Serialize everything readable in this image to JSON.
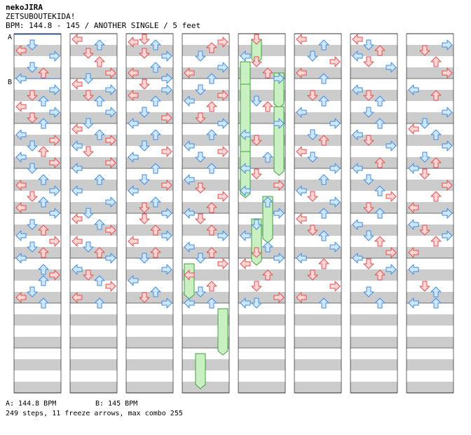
{
  "header": {
    "artist": "nekoJIRA",
    "title": "ZETSUBOUTEKIDA!",
    "info": "BPM: 144.8 - 145 / ANOTHER SINGLE / 5 feet"
  },
  "sections": {
    "a": "A",
    "b": "B"
  },
  "footer": {
    "bpm_a": "A: 144.8 BPM",
    "bpm_b": "B: 145 BPM",
    "stats": "249 steps, 11 freeze arrows, max combo 255"
  },
  "colors": {
    "step_red_fill": "#ffd4d4",
    "step_red_stroke": "#e05050",
    "step_blue_fill": "#cfe6ff",
    "step_blue_stroke": "#3b8fe0",
    "freeze_fill": "#c8f0c0",
    "freeze_stroke": "#40a040",
    "stripe_gray": "#cccccc",
    "section_line": "#3b6fd0"
  },
  "chart_data": {
    "type": "step-chart",
    "columns": 8,
    "measures_per_column": 8,
    "lanes": [
      "left",
      "down",
      "up",
      "right"
    ],
    "notes": [
      [
        [
          1,
          0,
          2
        ],
        [
          0,
          0,
          4
        ],
        [
          3,
          0,
          6
        ],
        [
          1,
          0,
          10
        ],
        [
          2,
          0,
          12
        ],
        [
          0,
          0,
          14
        ],
        [
          3,
          1,
          2
        ],
        [
          1,
          1,
          4
        ],
        [
          2,
          1,
          6
        ],
        [
          0,
          1,
          8
        ],
        [
          3,
          1,
          10
        ],
        [
          1,
          1,
          12
        ],
        [
          2,
          1,
          14
        ],
        [
          0,
          2,
          2
        ],
        [
          3,
          2,
          4
        ],
        [
          1,
          2,
          6
        ],
        [
          2,
          2,
          8
        ],
        [
          0,
          2,
          10
        ],
        [
          3,
          2,
          12
        ],
        [
          1,
          2,
          14
        ],
        [
          2,
          3,
          2
        ],
        [
          0,
          3,
          4
        ],
        [
          3,
          3,
          6
        ],
        [
          1,
          3,
          8
        ],
        [
          2,
          3,
          10
        ],
        [
          0,
          3,
          12
        ],
        [
          3,
          3,
          14
        ],
        [
          1,
          4,
          2
        ],
        [
          2,
          4,
          4
        ],
        [
          0,
          4,
          6
        ],
        [
          3,
          4,
          8
        ],
        [
          1,
          4,
          10
        ],
        [
          2,
          4,
          12
        ],
        [
          0,
          4,
          14
        ],
        [
          2,
          5,
          2
        ],
        [
          3,
          5,
          4
        ],
        [
          2,
          5,
          6
        ],
        [
          1,
          5,
          10
        ],
        [
          0,
          5,
          12
        ],
        [
          2,
          5,
          14
        ]
      ],
      [
        [
          0,
          0,
          0
        ],
        [
          2,
          0,
          2
        ],
        [
          1,
          0,
          5
        ],
        [
          2,
          0,
          8
        ],
        [
          3,
          0,
          12
        ],
        [
          1,
          0,
          14
        ],
        [
          0,
          1,
          0
        ],
        [
          3,
          1,
          2
        ],
        [
          1,
          1,
          4
        ],
        [
          2,
          1,
          6
        ],
        [
          3,
          1,
          10
        ],
        [
          1,
          1,
          14
        ],
        [
          0,
          2,
          0
        ],
        [
          2,
          2,
          2
        ],
        [
          3,
          2,
          4
        ],
        [
          0,
          2,
          6
        ],
        [
          1,
          2,
          8
        ],
        [
          3,
          2,
          12
        ],
        [
          0,
          2,
          14
        ],
        [
          2,
          3,
          2
        ],
        [
          0,
          3,
          6
        ],
        [
          3,
          3,
          10
        ],
        [
          1,
          3,
          14
        ],
        [
          0,
          4,
          0
        ],
        [
          2,
          4,
          2
        ],
        [
          3,
          4,
          4
        ],
        [
          0,
          4,
          8
        ],
        [
          1,
          4,
          10
        ],
        [
          2,
          4,
          12
        ],
        [
          3,
          4,
          14
        ],
        [
          0,
          5,
          2
        ],
        [
          1,
          5,
          4
        ],
        [
          2,
          5,
          6
        ],
        [
          3,
          5,
          8
        ],
        [
          0,
          5,
          12
        ],
        [
          2,
          5,
          14
        ]
      ],
      [
        [
          1,
          0,
          0
        ],
        [
          0,
          0,
          1
        ],
        [
          2,
          0,
          2
        ],
        [
          1,
          0,
          5
        ],
        [
          3,
          0,
          6
        ],
        [
          2,
          0,
          10
        ],
        [
          0,
          0,
          12
        ],
        [
          3,
          0,
          14
        ],
        [
          1,
          1,
          0
        ],
        [
          3,
          1,
          2
        ],
        [
          0,
          1,
          4
        ],
        [
          2,
          1,
          6
        ],
        [
          1,
          1,
          10
        ],
        [
          3,
          1,
          12
        ],
        [
          0,
          1,
          14
        ],
        [
          2,
          2,
          2
        ],
        [
          1,
          2,
          6
        ],
        [
          3,
          2,
          8
        ],
        [
          0,
          2,
          10
        ],
        [
          2,
          2,
          14
        ],
        [
          1,
          3,
          2
        ],
        [
          3,
          3,
          4
        ],
        [
          0,
          3,
          6
        ],
        [
          2,
          3,
          10
        ],
        [
          1,
          3,
          12
        ],
        [
          3,
          3,
          14
        ],
        [
          1,
          4,
          0
        ],
        [
          2,
          4,
          4
        ],
        [
          3,
          4,
          6
        ],
        [
          0,
          4,
          8
        ],
        [
          2,
          4,
          12
        ],
        [
          1,
          4,
          14
        ],
        [
          3,
          5,
          2
        ],
        [
          0,
          5,
          6
        ],
        [
          2,
          5,
          10
        ],
        [
          1,
          5,
          12
        ],
        [
          3,
          5,
          14
        ]
      ],
      [
        [
          3,
          0,
          1
        ],
        [
          2,
          0,
          3
        ],
        [
          1,
          0,
          6
        ],
        [
          3,
          0,
          10
        ],
        [
          0,
          0,
          12
        ],
        [
          2,
          0,
          14
        ],
        [
          1,
          1,
          2
        ],
        [
          3,
          1,
          4
        ],
        [
          0,
          1,
          6
        ],
        [
          2,
          1,
          8
        ],
        [
          1,
          1,
          12
        ],
        [
          3,
          1,
          14
        ],
        [
          2,
          2,
          2
        ],
        [
          0,
          2,
          6
        ],
        [
          3,
          2,
          8
        ],
        [
          1,
          2,
          10
        ],
        [
          2,
          2,
          14
        ],
        [
          0,
          3,
          2
        ],
        [
          1,
          3,
          5
        ],
        [
          3,
          3,
          8
        ],
        [
          2,
          3,
          12
        ],
        [
          0,
          3,
          14
        ],
        [
          1,
          4,
          0
        ],
        [
          2,
          4,
          4
        ],
        [
          3,
          4,
          6
        ],
        [
          0,
          4,
          10
        ],
        [
          2,
          4,
          12
        ],
        [
          1,
          4,
          14
        ],
        [
          3,
          5,
          0
        ],
        [
          0,
          5,
          4
        ],
        [
          2,
          5,
          8
        ],
        [
          1,
          5,
          10
        ],
        [
          0,
          5,
          14
        ],
        [
          2,
          5,
          14
        ]
      ],
      [
        [
          1,
          0,
          0
        ],
        [
          0,
          0,
          6
        ],
        [
          1,
          0,
          8
        ],
        [
          2,
          0,
          12
        ],
        [
          3,
          0,
          14
        ],
        [
          1,
          1,
          6
        ],
        [
          2,
          1,
          8
        ],
        [
          3,
          1,
          14
        ],
        [
          0,
          2,
          2
        ],
        [
          1,
          2,
          4
        ],
        [
          2,
          2,
          10
        ],
        [
          0,
          2,
          14
        ],
        [
          1,
          3,
          0
        ],
        [
          3,
          3,
          4
        ],
        [
          0,
          3,
          6
        ],
        [
          2,
          3,
          10
        ],
        [
          3,
          3,
          14
        ],
        [
          1,
          4,
          2
        ],
        [
          0,
          4,
          6
        ],
        [
          2,
          4,
          10
        ],
        [
          1,
          4,
          12
        ],
        [
          3,
          4,
          14
        ],
        [
          0,
          5,
          0
        ],
        [
          2,
          5,
          4
        ],
        [
          1,
          5,
          8
        ],
        [
          3,
          5,
          12
        ],
        [
          0,
          5,
          14
        ],
        [
          1,
          5,
          14
        ]
      ],
      [
        [
          0,
          0,
          0
        ],
        [
          2,
          0,
          2
        ],
        [
          1,
          0,
          6
        ],
        [
          3,
          0,
          8
        ],
        [
          0,
          0,
          12
        ],
        [
          2,
          0,
          14
        ],
        [
          1,
          1,
          4
        ],
        [
          2,
          1,
          6
        ],
        [
          0,
          1,
          10
        ],
        [
          3,
          1,
          14
        ],
        [
          1,
          2,
          2
        ],
        [
          2,
          2,
          4
        ],
        [
          0,
          2,
          8
        ],
        [
          1,
          2,
          10
        ],
        [
          3,
          2,
          14
        ],
        [
          2,
          3,
          2
        ],
        [
          0,
          3,
          6
        ],
        [
          1,
          3,
          8
        ],
        [
          3,
          3,
          10
        ],
        [
          2,
          3,
          14
        ],
        [
          0,
          4,
          0
        ],
        [
          1,
          4,
          4
        ],
        [
          2,
          4,
          6
        ],
        [
          3,
          4,
          10
        ],
        [
          0,
          4,
          14
        ],
        [
          2,
          5,
          0
        ],
        [
          1,
          5,
          4
        ],
        [
          3,
          5,
          8
        ],
        [
          0,
          5,
          12
        ],
        [
          2,
          5,
          14
        ]
      ],
      [
        [
          0,
          0,
          0
        ],
        [
          1,
          0,
          2
        ],
        [
          2,
          0,
          4
        ],
        [
          0,
          0,
          6
        ],
        [
          1,
          0,
          8
        ],
        [
          3,
          0,
          10
        ],
        [
          0,
          1,
          2
        ],
        [
          1,
          1,
          4
        ],
        [
          2,
          1,
          6
        ],
        [
          1,
          1,
          10
        ],
        [
          2,
          1,
          14
        ],
        [
          0,
          2,
          2
        ],
        [
          1,
          2,
          4
        ],
        [
          3,
          2,
          6
        ],
        [
          2,
          2,
          12
        ],
        [
          0,
          2,
          14
        ],
        [
          1,
          3,
          2
        ],
        [
          2,
          3,
          6
        ],
        [
          3,
          3,
          8
        ],
        [
          1,
          3,
          12
        ],
        [
          2,
          3,
          14
        ],
        [
          0,
          4,
          2
        ],
        [
          1,
          4,
          6
        ],
        [
          2,
          4,
          8
        ],
        [
          3,
          4,
          12
        ],
        [
          0,
          4,
          14
        ],
        [
          1,
          5,
          0
        ],
        [
          3,
          5,
          2
        ],
        [
          2,
          5,
          4
        ],
        [
          1,
          5,
          10
        ],
        [
          2,
          5,
          14
        ]
      ],
      [
        [
          3,
          0,
          2
        ],
        [
          1,
          0,
          4
        ],
        [
          2,
          0,
          8
        ],
        [
          3,
          0,
          12
        ],
        [
          0,
          1,
          2
        ],
        [
          2,
          1,
          4
        ],
        [
          3,
          1,
          10
        ],
        [
          1,
          1,
          14
        ],
        [
          0,
          2,
          0
        ],
        [
          2,
          2,
          2
        ],
        [
          3,
          2,
          6
        ],
        [
          1,
          2,
          10
        ],
        [
          2,
          2,
          12
        ],
        [
          0,
          2,
          14
        ],
        [
          1,
          3,
          0
        ],
        [
          3,
          3,
          4
        ],
        [
          2,
          3,
          8
        ],
        [
          0,
          3,
          12
        ],
        [
          3,
          3,
          14
        ],
        [
          0,
          4,
          2
        ],
        [
          1,
          4,
          4
        ],
        [
          3,
          4,
          6
        ],
        [
          2,
          4,
          8
        ],
        [
          0,
          4,
          12
        ],
        [
          0,
          5,
          2
        ],
        [
          1,
          5,
          8
        ],
        [
          2,
          5,
          10
        ],
        [
          0,
          5,
          14
        ],
        [
          2,
          5,
          14
        ]
      ]
    ]
  }
}
